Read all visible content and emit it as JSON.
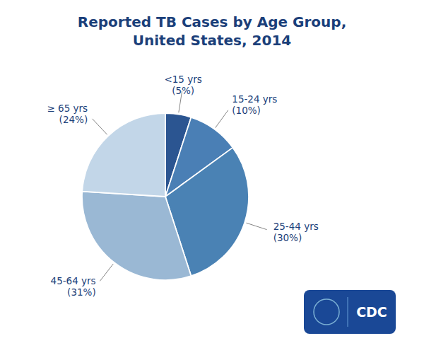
{
  "chart_data": {
    "type": "pie",
    "title": "Reported TB Cases by Age Group,\nUnited States, 2014",
    "categories": [
      "<15 yrs",
      "15-24 yrs",
      "25-44 yrs",
      "45-64 yrs",
      "≥ 65 yrs"
    ],
    "values": [
      5,
      10,
      30,
      31,
      24
    ],
    "value_labels": [
      "(5%)",
      "(10%)",
      "(30%)",
      "(31%)",
      "(24%)"
    ],
    "colors": [
      "#2b5591",
      "#4a7fb5",
      "#4a82b4",
      "#9ab8d4",
      "#c2d6e8"
    ],
    "data_labels": true,
    "annotations": [
      "CDC"
    ]
  }
}
